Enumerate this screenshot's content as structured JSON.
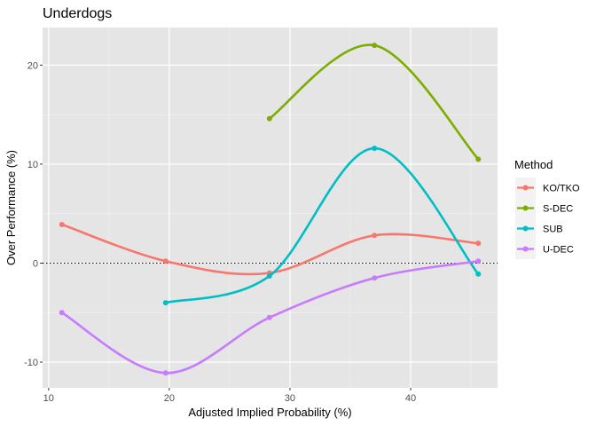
{
  "chart_data": {
    "type": "line",
    "title": "Underdogs",
    "xlabel": "Adjusted Implied Probability (%)",
    "ylabel": "Over Performance (%)",
    "xlim": [
      9.5,
      47.2
    ],
    "ylim": [
      -12.6,
      23.8
    ],
    "x_ticks": [
      10,
      20,
      30,
      40
    ],
    "y_ticks": [
      -10,
      0,
      10,
      20
    ],
    "x_tick_labels": [
      "10",
      "20",
      "30",
      "40"
    ],
    "y_tick_labels": [
      "-10",
      "0",
      "10",
      "20"
    ],
    "reference_line": {
      "y": 0,
      "style": "dotted"
    },
    "grid": true,
    "background": "#e5e5e5",
    "legend": {
      "title": "Method",
      "position": "right"
    },
    "series": [
      {
        "name": "KO/TKO",
        "color": "#f8766d",
        "points": [
          [
            11.1,
            3.9
          ],
          [
            19.7,
            0.2
          ],
          [
            28.3,
            -1.0
          ],
          [
            37.0,
            2.8
          ],
          [
            45.6,
            2.0
          ]
        ]
      },
      {
        "name": "S-DEC",
        "color": "#7cae00",
        "points": [
          [
            28.3,
            14.6
          ],
          [
            37.0,
            22.0
          ],
          [
            45.6,
            10.5
          ]
        ]
      },
      {
        "name": "SUB",
        "color": "#00bfc4",
        "points": [
          [
            19.7,
            -4.0
          ],
          [
            28.3,
            -1.3
          ],
          [
            37.0,
            11.6
          ],
          [
            45.6,
            -1.1
          ]
        ]
      },
      {
        "name": "U-DEC",
        "color": "#c77cff",
        "points": [
          [
            11.1,
            -5.0
          ],
          [
            19.7,
            -11.1
          ],
          [
            28.3,
            -5.5
          ],
          [
            37.0,
            -1.5
          ],
          [
            45.6,
            0.2
          ]
        ]
      }
    ]
  }
}
